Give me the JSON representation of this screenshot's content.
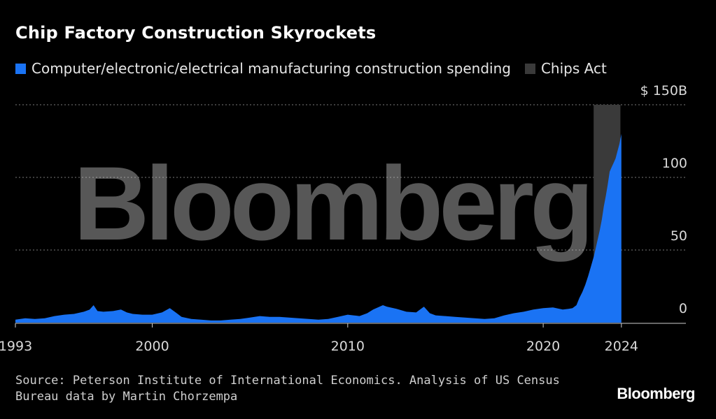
{
  "chart_data": {
    "type": "area",
    "title": "Chip Factory Construction Skyrockets",
    "series": [
      {
        "name": "Computer/electronic/electrical manufacturing construction spending",
        "color": "#1a73f4"
      }
    ],
    "highlight": {
      "name": "Chips Act",
      "color": "#3a3a3a",
      "start": 2022.58,
      "end": 2023.95
    },
    "y_unit_prefix": "$",
    "y_unit_suffix": "B",
    "ylim": [
      0,
      150
    ],
    "yticks": [
      {
        "value": 0,
        "label": "0"
      },
      {
        "value": 50,
        "label": "50"
      },
      {
        "value": 100,
        "label": "100"
      },
      {
        "value": 150,
        "label": "$ 150B"
      }
    ],
    "xlim": [
      1993,
      2027.3
    ],
    "xticks": [
      {
        "value": 1993,
        "label": "1993"
      },
      {
        "value": 2000,
        "label": "2000"
      },
      {
        "value": 2010,
        "label": "2010"
      },
      {
        "value": 2020,
        "label": "2020"
      },
      {
        "value": 2024,
        "label": "2024"
      }
    ],
    "points": [
      [
        1993.0,
        2
      ],
      [
        1993.5,
        3
      ],
      [
        1994.0,
        2.5
      ],
      [
        1994.5,
        3
      ],
      [
        1995.0,
        4.5
      ],
      [
        1995.5,
        5.5
      ],
      [
        1996.0,
        6
      ],
      [
        1996.5,
        7.5
      ],
      [
        1996.8,
        9
      ],
      [
        1997.0,
        12
      ],
      [
        1997.2,
        8
      ],
      [
        1997.5,
        7.5
      ],
      [
        1998.0,
        8
      ],
      [
        1998.4,
        9
      ],
      [
        1998.7,
        7
      ],
      [
        1999.0,
        6
      ],
      [
        1999.5,
        5.5
      ],
      [
        2000.0,
        5.5
      ],
      [
        2000.5,
        7
      ],
      [
        2000.9,
        10
      ],
      [
        2001.2,
        7
      ],
      [
        2001.5,
        4
      ],
      [
        2002.0,
        2.5
      ],
      [
        2002.5,
        2
      ],
      [
        2003.0,
        1.5
      ],
      [
        2003.5,
        1.5
      ],
      [
        2004.0,
        2
      ],
      [
        2004.5,
        2.5
      ],
      [
        2005.0,
        3.5
      ],
      [
        2005.5,
        4.5
      ],
      [
        2006.0,
        4
      ],
      [
        2006.5,
        4
      ],
      [
        2007.0,
        3.5
      ],
      [
        2007.5,
        3
      ],
      [
        2008.0,
        2.5
      ],
      [
        2008.5,
        2
      ],
      [
        2009.0,
        2.5
      ],
      [
        2009.5,
        4
      ],
      [
        2010.0,
        5.5
      ],
      [
        2010.3,
        5
      ],
      [
        2010.6,
        4.5
      ],
      [
        2011.0,
        6.5
      ],
      [
        2011.3,
        9
      ],
      [
        2011.8,
        12
      ],
      [
        2012.0,
        11
      ],
      [
        2012.5,
        9.5
      ],
      [
        2013.0,
        7.5
      ],
      [
        2013.5,
        7
      ],
      [
        2013.9,
        11
      ],
      [
        2014.2,
        6.5
      ],
      [
        2014.5,
        5
      ],
      [
        2015.0,
        4.5
      ],
      [
        2015.5,
        4
      ],
      [
        2016.0,
        3.5
      ],
      [
        2016.5,
        3
      ],
      [
        2017.0,
        2.5
      ],
      [
        2017.5,
        3
      ],
      [
        2018.0,
        5
      ],
      [
        2018.5,
        6.5
      ],
      [
        2019.0,
        7.5
      ],
      [
        2019.5,
        9
      ],
      [
        2020.0,
        10
      ],
      [
        2020.5,
        10.5
      ],
      [
        2021.0,
        9
      ],
      [
        2021.3,
        9.5
      ],
      [
        2021.5,
        10
      ],
      [
        2021.7,
        12
      ],
      [
        2021.85,
        17
      ],
      [
        2022.0,
        21
      ],
      [
        2022.15,
        26
      ],
      [
        2022.3,
        32
      ],
      [
        2022.45,
        39
      ],
      [
        2022.6,
        46
      ],
      [
        2022.75,
        55
      ],
      [
        2022.9,
        64
      ],
      [
        2023.0,
        71
      ],
      [
        2023.1,
        80
      ],
      [
        2023.2,
        87
      ],
      [
        2023.3,
        95
      ],
      [
        2023.4,
        104
      ],
      [
        2023.5,
        107
      ],
      [
        2023.6,
        110
      ],
      [
        2023.7,
        113
      ],
      [
        2023.8,
        118
      ],
      [
        2023.9,
        123
      ],
      [
        2024.0,
        130
      ]
    ]
  },
  "legend": {
    "series_label": "Computer/electronic/electrical manufacturing construction spending",
    "highlight_label": "Chips Act"
  },
  "source": {
    "line1": "Source: Peterson Institute of International Economics. Analysis of US Census",
    "line2": "Bureau data by Martin Chorzempa"
  },
  "watermark": "Bloomberg",
  "brand": "Bloomberg"
}
